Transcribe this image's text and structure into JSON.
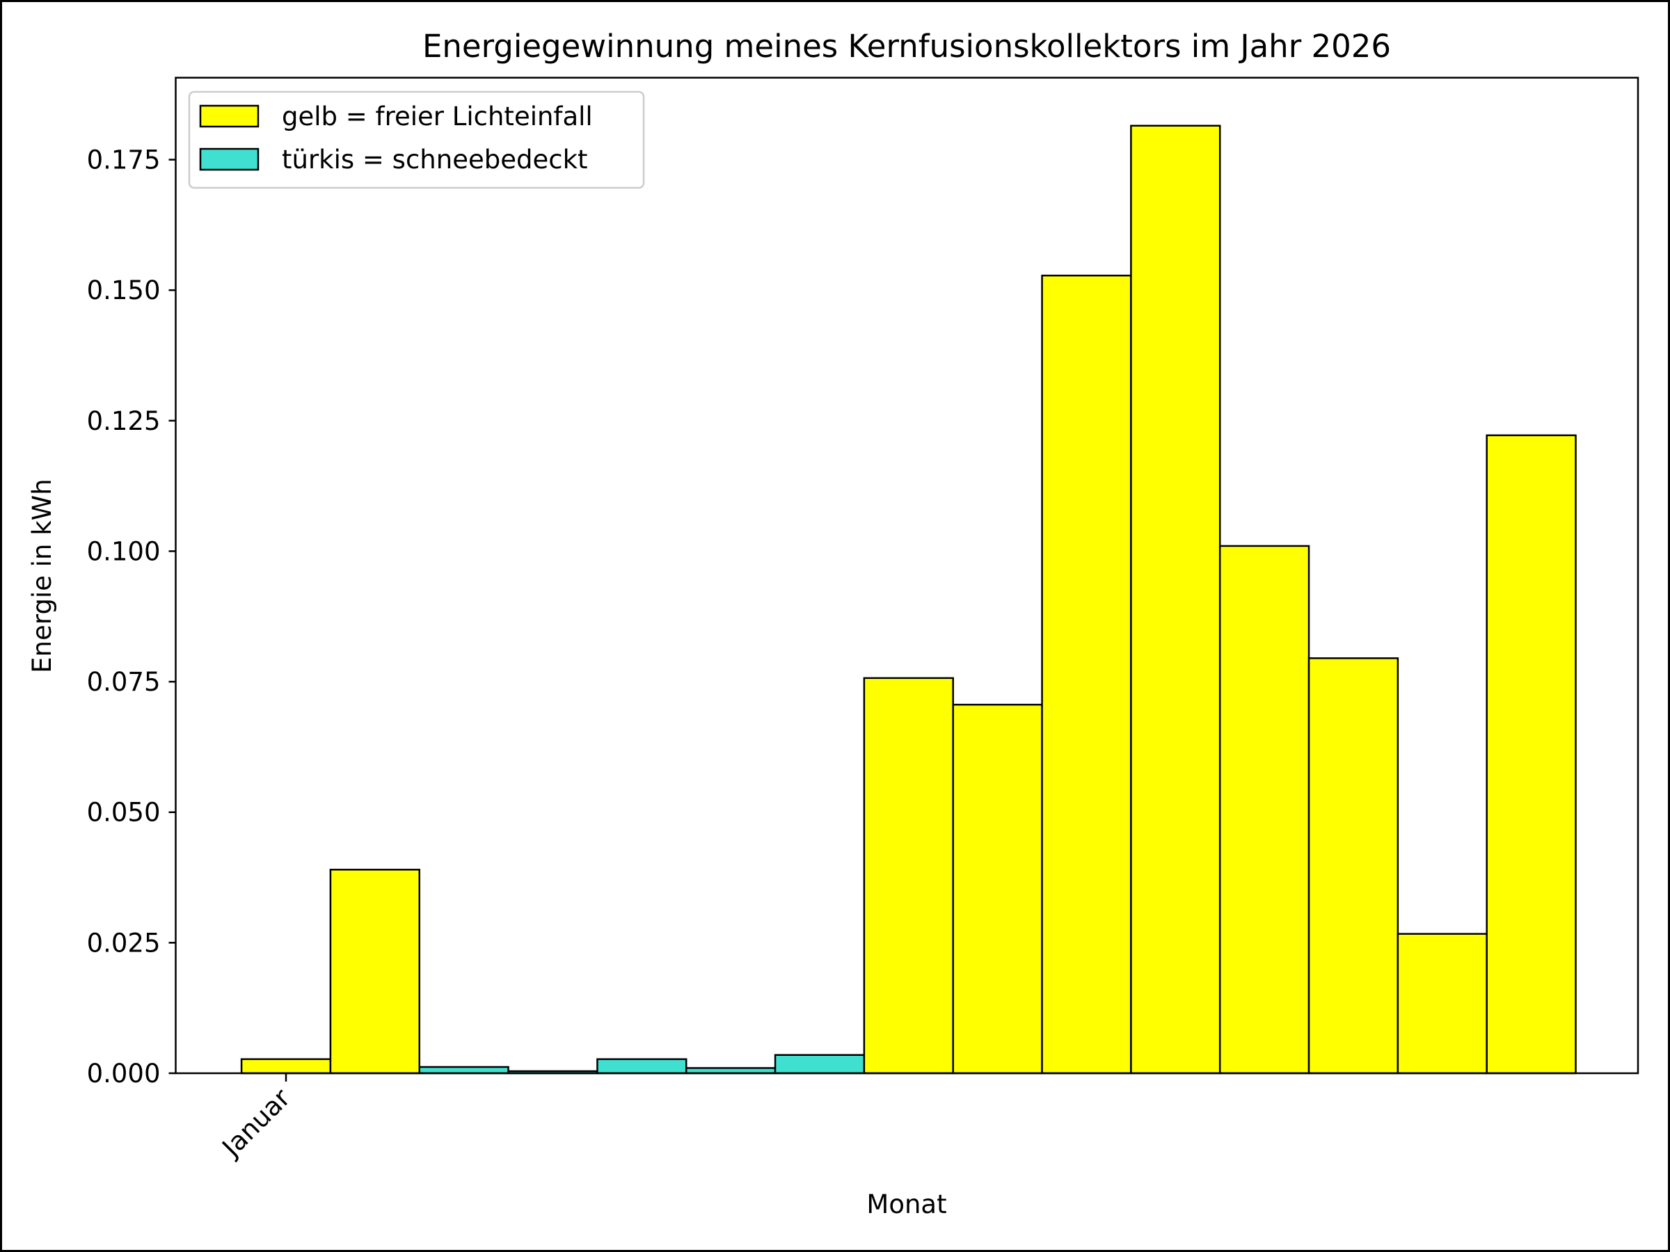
{
  "chart_data": {
    "type": "bar",
    "title": "Energiegewinnung meines Kernfusionskollektors im Jahr 2026",
    "xlabel": "Monat",
    "ylabel": "Energie in kWh",
    "x_tick_labels": [
      "Januar"
    ],
    "y_ticks": [
      0.0,
      0.025,
      0.05,
      0.075,
      0.1,
      0.125,
      0.15,
      0.175
    ],
    "y_tick_labels": [
      "0.000",
      "0.025",
      "0.050",
      "0.075",
      "0.100",
      "0.125",
      "0.150",
      "0.175"
    ],
    "ylim": [
      0,
      0.1907
    ],
    "xlim": [
      -1.24,
      15.2
    ],
    "values": [
      0.0027,
      0.039,
      0.0012,
      0.0004,
      0.0027,
      0.001,
      0.0035,
      0.0757,
      0.0706,
      0.1528,
      0.1815,
      0.101,
      0.0795,
      0.0267,
      0.1222
    ],
    "series_of_bar": [
      "sun",
      "sun",
      "snow",
      "snow",
      "snow",
      "snow",
      "snow",
      "sun",
      "sun",
      "sun",
      "sun",
      "sun",
      "sun",
      "sun",
      "sun"
    ],
    "legend": {
      "placement": "top-left",
      "entries": [
        {
          "key": "sun",
          "label": "gelb = freier Lichteinfall",
          "color": "#ffff00"
        },
        {
          "key": "snow",
          "label": "türkis = schneebedeckt",
          "color": "#40e0d0"
        }
      ]
    },
    "grid": false
  }
}
